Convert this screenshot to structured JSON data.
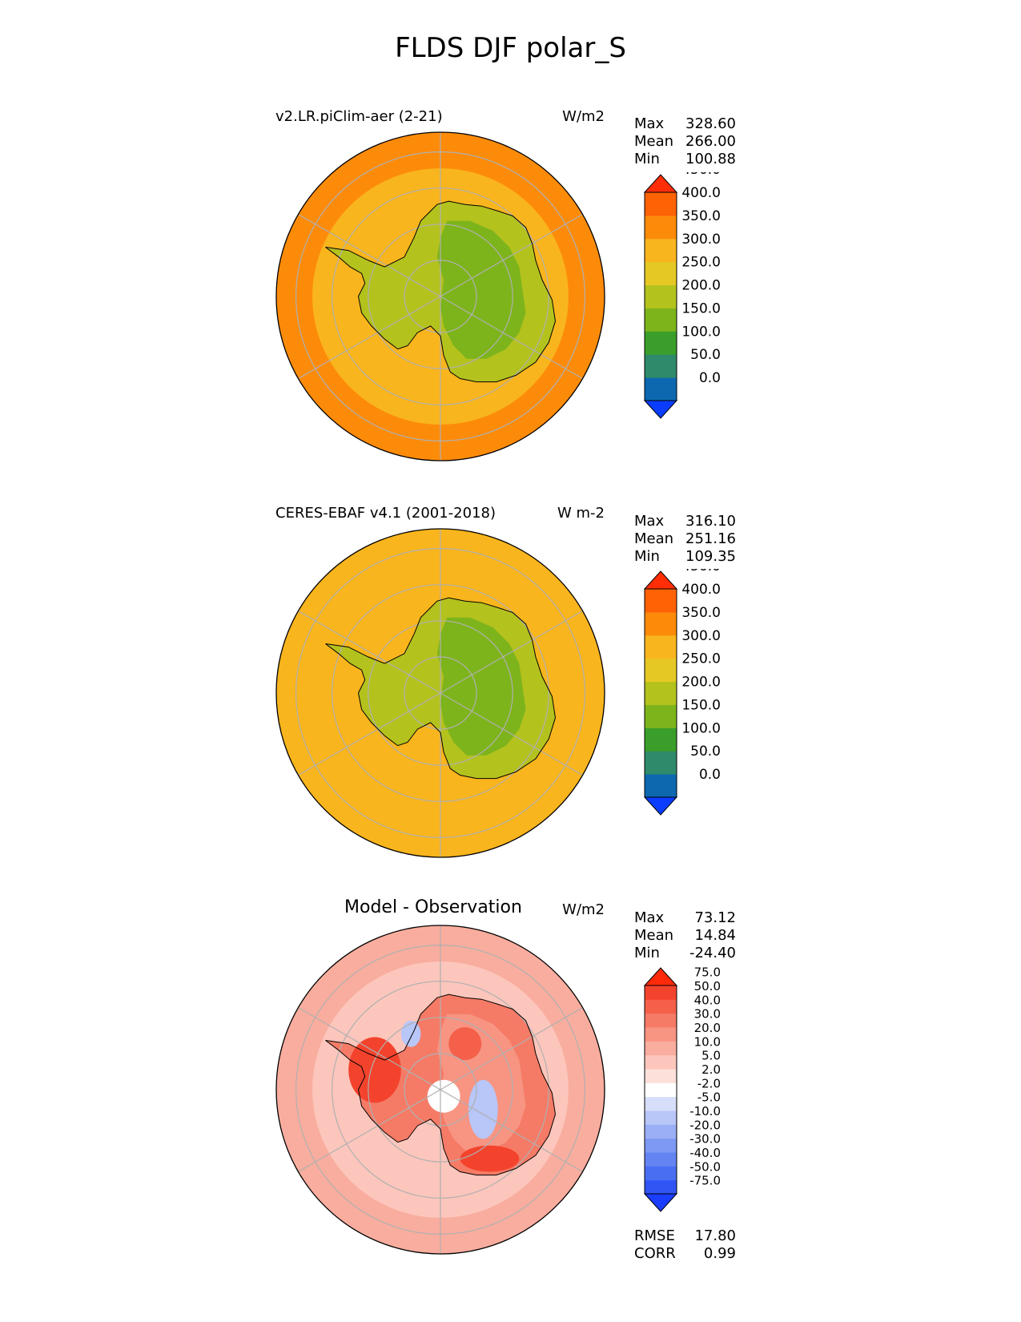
{
  "figure_title": "FLDS DJF polar_S",
  "colors": {
    "land_outline": "#000000",
    "grid": "#b0b0b0",
    "ocean_model": "#f9b51d",
    "ocean_obs": "#e6c824",
    "diff_ocean": "#f8ada0"
  },
  "chart_data": [
    {
      "type": "heatmap",
      "projection": "south-polar-stereographic",
      "title": "v2.LR.piClim-aer (2-21)",
      "units": "W/m2",
      "stats": [
        {
          "label": "Max",
          "value": "328.60"
        },
        {
          "label": "Mean",
          "value": "266.00"
        },
        {
          "label": "Min",
          "value": "100.88"
        }
      ],
      "colorbar": {
        "ticks": [
          "0.0",
          "50.0",
          "100.0",
          "150.0",
          "200.0",
          "250.0",
          "300.0",
          "350.0",
          "400.0",
          "450.0"
        ],
        "colors": [
          "#0b3dff",
          "#0d68b0",
          "#2e8a6a",
          "#3a9e2a",
          "#7db41b",
          "#b4c21e",
          "#e6c824",
          "#f9b51d",
          "#fd8b0a",
          "#fd6204",
          "#ff2e06"
        ],
        "extend": "both"
      }
    },
    {
      "type": "heatmap",
      "projection": "south-polar-stereographic",
      "title": "CERES-EBAF v4.1 (2001-2018)",
      "units": "W m-2",
      "stats": [
        {
          "label": "Max",
          "value": "316.10"
        },
        {
          "label": "Mean",
          "value": "251.16"
        },
        {
          "label": "Min",
          "value": "109.35"
        }
      ],
      "colorbar": {
        "ticks": [
          "0.0",
          "50.0",
          "100.0",
          "150.0",
          "200.0",
          "250.0",
          "300.0",
          "350.0",
          "400.0",
          "450.0"
        ],
        "colors": [
          "#0b3dff",
          "#0d68b0",
          "#2e8a6a",
          "#3a9e2a",
          "#7db41b",
          "#b4c21e",
          "#e6c824",
          "#f9b51d",
          "#fd8b0a",
          "#fd6204",
          "#ff2e06"
        ],
        "extend": "both"
      }
    },
    {
      "type": "heatmap",
      "projection": "south-polar-stereographic",
      "title": "Model - Observation",
      "units": "W/m2",
      "stats": [
        {
          "label": "Max",
          "value": "73.12"
        },
        {
          "label": "Mean",
          "value": "14.84"
        },
        {
          "label": "Min",
          "value": "-24.40"
        }
      ],
      "metrics": [
        {
          "label": "RMSE",
          "value": "17.80"
        },
        {
          "label": "CORR",
          "value": "0.99"
        }
      ],
      "colorbar": {
        "ticks": [
          "-75.0",
          "-50.0",
          "-40.0",
          "-30.0",
          "-20.0",
          "-10.0",
          "-5.0",
          "-2.0",
          "2.0",
          "5.0",
          "10.0",
          "20.0",
          "30.0",
          "40.0",
          "50.0",
          "75.0"
        ],
        "colors": [
          "#1a3dff",
          "#3055f4",
          "#4a6ef2",
          "#6484f2",
          "#7e99f3",
          "#9aaff5",
          "#b8c6f8",
          "#d6def9",
          "#ffffff",
          "#fde0da",
          "#fcc6bc",
          "#f9ad9e",
          "#f79482",
          "#f57b66",
          "#f4604a",
          "#f3432d",
          "#ff2a0a"
        ],
        "extend": "both"
      }
    }
  ]
}
